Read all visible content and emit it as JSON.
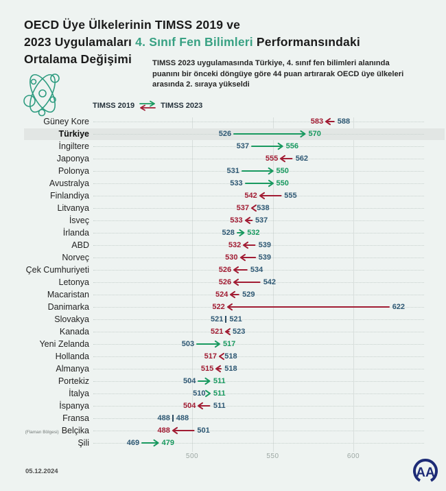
{
  "header": {
    "title_line1": "OECD Üye Ülkelerinin TIMSS 2019 ve",
    "title_line2_prefix": "2023 Uygulamaları ",
    "title_line2_highlight": "4. Sınıf Fen Bilimleri",
    "title_line2_suffix": " Performansındaki",
    "title_line3": "Ortalama Değişimi",
    "subtitle_lines": [
      "TIMSS 2023 uygulamasında Türkiye, 4. sınıf fen bilimleri alanında",
      "puanını bir önceki döngüye göre 44 puan artırarak OECD üye ülkeleri",
      "arasında 2. sıraya yükseldi"
    ]
  },
  "legend": {
    "left_label": "TIMSS 2019",
    "right_label": "TIMSS 2023"
  },
  "footer": {
    "date": "05.12.2024",
    "logo_text": "AA"
  },
  "colors": {
    "background": "#eef3f1",
    "title_accent_teal": "#38a183",
    "increase_green": "#18995f",
    "decrease_red": "#a11c33",
    "value_blue": "#2e5874",
    "highlight_band": "#e2e6e4",
    "logo_navy": "#1d2b76"
  },
  "chart_data": {
    "type": "dumbbell-arrow",
    "title": "OECD Üye Ülkelerinin TIMSS 2019 ve 2023 Uygulamaları 4. Sınıf Fen Bilimleri Performansındaki Ortalama Değişimi",
    "series_names": [
      "TIMSS 2019",
      "TIMSS 2023"
    ],
    "axis": {
      "ticks": [
        "500",
        "550",
        "600"
      ],
      "xlim": [
        455,
        657
      ],
      "grid": "vertical"
    },
    "rows": [
      {
        "country": "Güney Kore",
        "timss2019": 588,
        "timss2023": 583
      },
      {
        "country": "Türkiye",
        "timss2019": 526,
        "timss2023": 570,
        "highlight": true
      },
      {
        "country": "İngiltere",
        "timss2019": 537,
        "timss2023": 556
      },
      {
        "country": "Japonya",
        "timss2019": 562,
        "timss2023": 555
      },
      {
        "country": "Polonya",
        "timss2019": 531,
        "timss2023": 550
      },
      {
        "country": "Avustralya",
        "timss2019": 533,
        "timss2023": 550
      },
      {
        "country": "Finlandiya",
        "timss2019": 555,
        "timss2023": 542
      },
      {
        "country": "Litvanya",
        "timss2019": 538,
        "timss2023": 537
      },
      {
        "country": "İsveç",
        "timss2019": 537,
        "timss2023": 533
      },
      {
        "country": "İrlanda",
        "timss2019": 528,
        "timss2023": 532
      },
      {
        "country": "ABD",
        "timss2019": 539,
        "timss2023": 532
      },
      {
        "country": "Norveç",
        "timss2019": 539,
        "timss2023": 530
      },
      {
        "country": "Çek Cumhuriyeti",
        "timss2019": 534,
        "timss2023": 526
      },
      {
        "country": "Letonya",
        "timss2019": 542,
        "timss2023": 526
      },
      {
        "country": "Macaristan",
        "timss2019": 529,
        "timss2023": 524
      },
      {
        "country": "Danimarka",
        "timss2019": 622,
        "timss2023": 522
      },
      {
        "country": "Slovakya",
        "timss2019": 521,
        "timss2023": 521
      },
      {
        "country": "Kanada",
        "timss2019": 523,
        "timss2023": 521
      },
      {
        "country": "Yeni Zelanda",
        "timss2019": 503,
        "timss2023": 517
      },
      {
        "country": "Hollanda",
        "timss2019": 518,
        "timss2023": 517
      },
      {
        "country": "Almanya",
        "timss2019": 518,
        "timss2023": 515
      },
      {
        "country": "Portekiz",
        "timss2019": 504,
        "timss2023": 511
      },
      {
        "country": "İtalya",
        "timss2019": 510,
        "timss2023": 511
      },
      {
        "country": "İspanya",
        "timss2019": 511,
        "timss2023": 504
      },
      {
        "country": "Fransa",
        "timss2019": 488,
        "timss2023": 488
      },
      {
        "country": "Belçika",
        "note": "(Flaman Bölgesi)",
        "timss2019": 501,
        "timss2023": 488
      },
      {
        "country": "Şili",
        "timss2019": 469,
        "timss2023": 479
      }
    ]
  }
}
